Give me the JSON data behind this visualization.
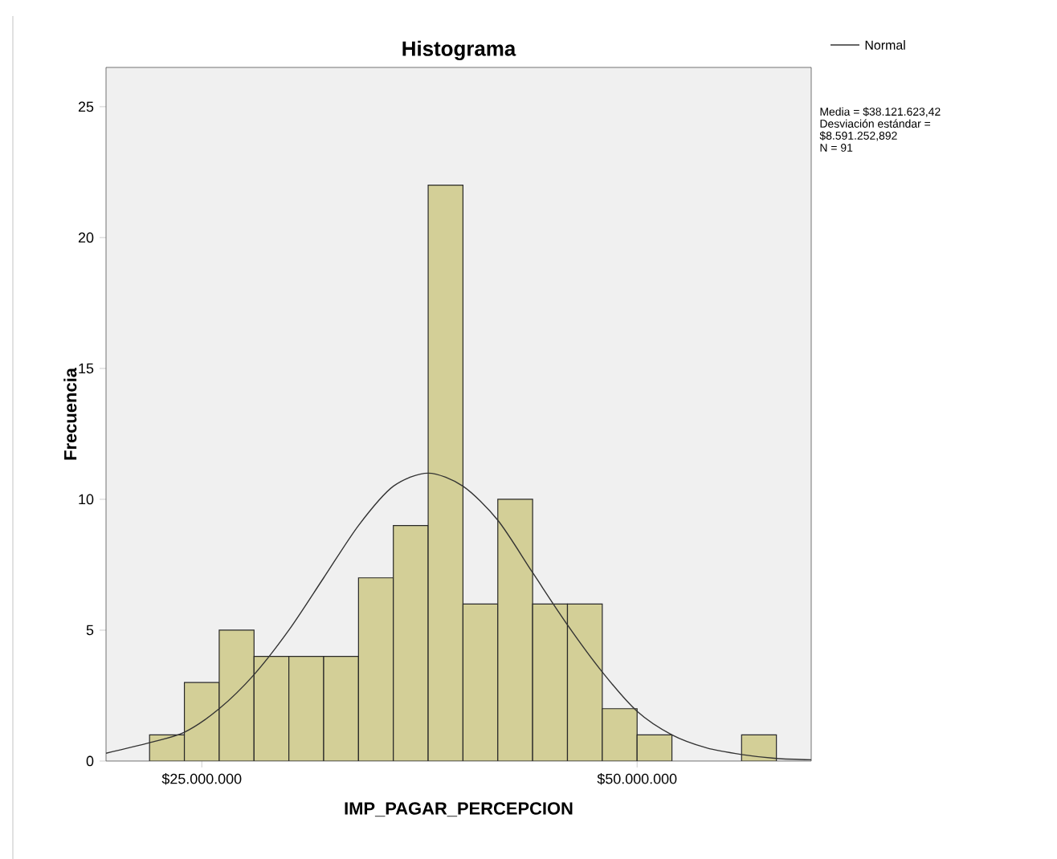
{
  "chart_data": {
    "type": "histogram",
    "title": "Histograma",
    "xlabel": "IMP_PAGAR_PERCEPCION",
    "ylabel": "Frecuencia",
    "bins": [
      22000000,
      24000000,
      26000000,
      28000000,
      30000000,
      32000000,
      34000000,
      36000000,
      38000000,
      40000000,
      42000000,
      44000000,
      46000000,
      48000000,
      50000000,
      52000000,
      54000000,
      56000000,
      58000000
    ],
    "values": [
      1,
      3,
      5,
      4,
      4,
      4,
      7,
      9,
      22,
      6,
      10,
      6,
      6,
      2,
      1,
      0,
      0,
      1
    ],
    "color": "#d3cf97",
    "series": [
      {
        "type": "line",
        "name": "Normal",
        "color": "#333333",
        "x": [
          19500000,
          22000000,
          24000000,
          26000000,
          28000000,
          30000000,
          32000000,
          34000000,
          36000000,
          38000000,
          40000000,
          42000000,
          44000000,
          46000000,
          48000000,
          50000000,
          52000000,
          54000000,
          56000000,
          58000000,
          60000000
        ],
        "values": [
          0.3,
          0.7,
          1.1,
          2.0,
          3.3,
          5.0,
          7.0,
          9.0,
          10.5,
          11.0,
          10.5,
          9.2,
          7.2,
          5.2,
          3.4,
          1.9,
          1.0,
          0.5,
          0.25,
          0.1,
          0.05
        ]
      }
    ],
    "xlim": [
      19500000,
      60000000
    ],
    "ylim": [
      0,
      26.5
    ],
    "xticks": [
      {
        "value": 25000000,
        "label": "$25.000.000"
      },
      {
        "value": 50000000,
        "label": "$50.000.000"
      }
    ],
    "yticks": [
      0,
      5,
      10,
      15,
      20,
      25
    ],
    "grid": false,
    "legend": "top right",
    "annotations": [
      "Media = $38.121.623,42",
      "Desviación estándar =",
      "$8.591.252,892",
      "N = 91"
    ]
  }
}
